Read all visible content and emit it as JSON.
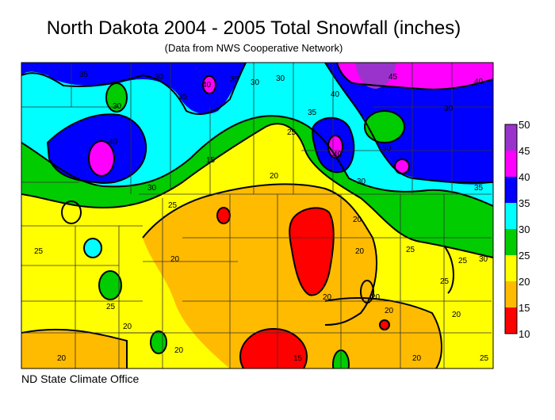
{
  "title": "North Dakota 2004 - 2005 Total Snowfall (inches)",
  "subtitle": "(Data from NWS Cooperative Network)",
  "credit": "ND State Climate Office",
  "legend": {
    "labels": [
      "50",
      "45",
      "40",
      "35",
      "30",
      "25",
      "20",
      "15",
      "10"
    ],
    "bins": [
      {
        "range": "45-50",
        "color": "#9933cc"
      },
      {
        "range": "40-45",
        "color": "#ff00ff"
      },
      {
        "range": "35-40",
        "color": "#0000ff"
      },
      {
        "range": "30-35",
        "color": "#00ffff"
      },
      {
        "range": "25-30",
        "color": "#00cc00"
      },
      {
        "range": "20-25",
        "color": "#ffff00"
      },
      {
        "range": "15-20",
        "color": "#ffbb00"
      },
      {
        "range": "10-15",
        "color": "#ff0000"
      }
    ]
  },
  "contour_labels": [
    "35",
    "30",
    "40",
    "35",
    "30",
    "30",
    "40",
    "35",
    "30",
    "45",
    "40",
    "30",
    "40",
    "40",
    "35",
    "30",
    "35",
    "30",
    "25",
    "25",
    "20",
    "25",
    "20",
    "20",
    "30",
    "25",
    "25",
    "20",
    "20",
    "20",
    "20",
    "15",
    "20",
    "25",
    "25",
    "20",
    "20",
    "20",
    "15",
    "20",
    "25",
    "30"
  ]
}
